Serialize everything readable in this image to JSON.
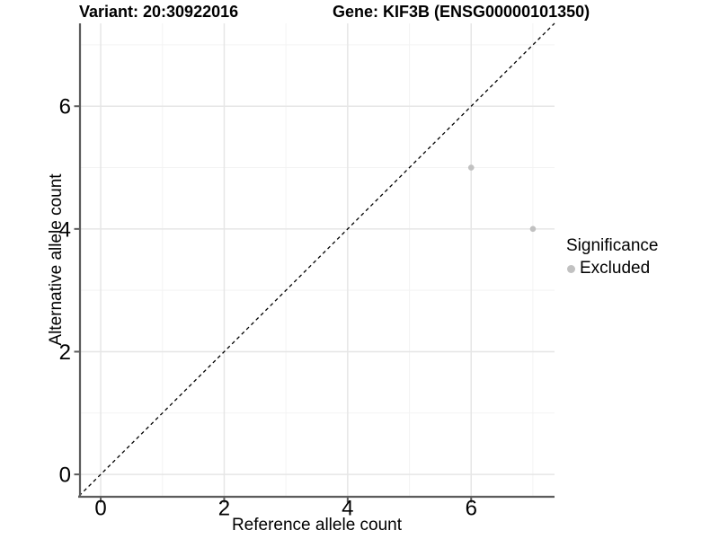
{
  "titles": {
    "left": "Variant: 20:30922016",
    "right": "Gene: KIF3B (ENSG00000101350)"
  },
  "axes": {
    "x_label": "Reference allele count",
    "y_label": "Alternative allele count"
  },
  "legend": {
    "title": "Significance",
    "items": [
      {
        "label": "Excluded",
        "color": "#c1c1c1"
      }
    ]
  },
  "colors": {
    "background": "#ffffff",
    "text": "#000000",
    "axis_line": "#5c5c5c",
    "grid_major": "#e6e6e6",
    "grid_minor": "#f3f3f3",
    "dashed_line": "#000000",
    "point": "#c1c1c1"
  },
  "chart_data": {
    "type": "scatter",
    "title": "Variant: 20:30922016   |   Gene: KIF3B (ENSG00000101350)",
    "xlabel": "Reference allele count",
    "ylabel": "Alternative allele count",
    "xlim": [
      -0.35,
      7.35
    ],
    "ylim": [
      -0.35,
      7.35
    ],
    "x_major_ticks": [
      0,
      2,
      4,
      6
    ],
    "x_minor_ticks": [
      1,
      3,
      5,
      7
    ],
    "y_major_ticks": [
      0,
      2,
      4,
      6
    ],
    "y_minor_ticks": [
      1,
      3,
      5,
      7
    ],
    "grid": true,
    "reference_line": {
      "type": "identity",
      "style": "dashed"
    },
    "series": [
      {
        "name": "Excluded",
        "color": "#c1c1c1",
        "points": [
          [
            6,
            5
          ],
          [
            7,
            4
          ]
        ]
      }
    ],
    "legend_position": "right"
  }
}
